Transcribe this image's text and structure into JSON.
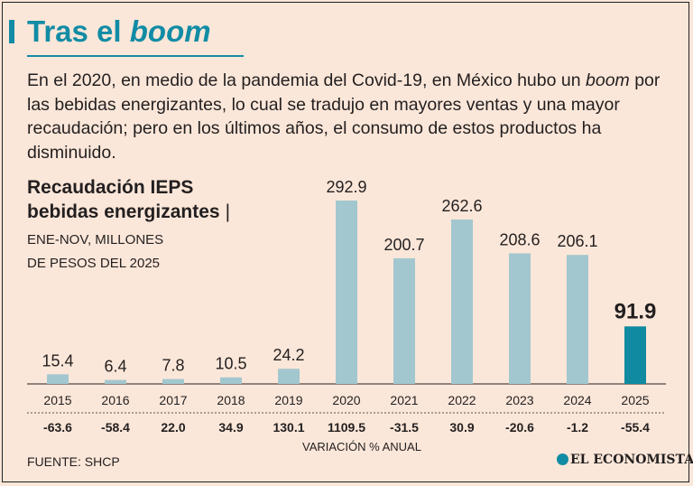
{
  "header": {
    "title_main": "Tras el",
    "title_italic": "boom"
  },
  "intro": {
    "part1": "En el 2020, en medio de la pandemia del Covid-19, en México hubo un",
    "italic": "boom",
    "part2": "por las bebidas energizantes, lo cual se tradujo en mayores ventas y una mayor recaudación; pero en los últimos años, el consumo de estos productos ha disminuido."
  },
  "chart_data": {
    "type": "bar",
    "title_line1": "Recaudación IEPS",
    "title_line2": "bebidas energizantes",
    "title_separator": "|",
    "subtitle_line1": "ENE-NOV, MILLONES",
    "subtitle_line2": "DE PESOS DEL 2025",
    "categories": [
      "2015",
      "2016",
      "2017",
      "2018",
      "2019",
      "2020",
      "2021",
      "2022",
      "2023",
      "2024",
      "2025"
    ],
    "values": [
      15.4,
      6.4,
      7.8,
      10.5,
      24.2,
      292.9,
      200.7,
      262.6,
      208.6,
      206.1,
      91.9
    ],
    "value_labels": [
      "15.4",
      "6.4",
      "7.8",
      "10.5",
      "24.2",
      "292.9",
      "200.7",
      "262.6",
      "208.6",
      "206.1",
      "91.9"
    ],
    "variation_pct": [
      "-63.6",
      "-58.4",
      "22.0",
      "34.9",
      "130.1",
      "1109.5",
      "-31.5",
      "30.9",
      "-20.6",
      "-1.2",
      "-55.4"
    ],
    "variation_label": "VARIACIÓN % ANUAL",
    "ylim": [
      0,
      300
    ],
    "highlight_index": 10,
    "bar_color": "#a3c7cf",
    "highlight_color": "#0f8aa0"
  },
  "footer": {
    "source": "FUENTE: SHCP",
    "brand": "EL ECONOMISTA"
  }
}
